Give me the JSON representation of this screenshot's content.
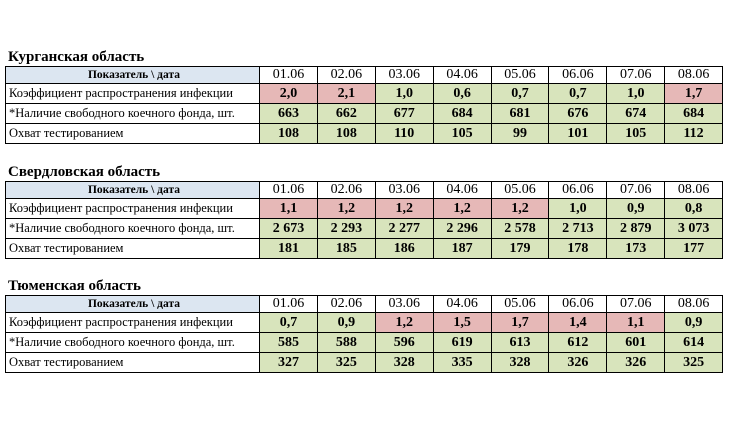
{
  "sections": [
    {
      "title": "Курганская область",
      "header": "Показатель \\ дата",
      "dates": [
        "01.06",
        "02.06",
        "03.06",
        "04.06",
        "05.06",
        "06.06",
        "07.06",
        "08.06"
      ],
      "rows": [
        {
          "label": "Коэффициент распространения инфекции",
          "values": [
            "2,0",
            "2,1",
            "1,0",
            "0,6",
            "0,7",
            "0,7",
            "1,0",
            "1,7"
          ],
          "fills": [
            "#e6b8b7",
            "#e6b8b7",
            "#d8e4bc",
            "#d8e4bc",
            "#d8e4bc",
            "#d8e4bc",
            "#d8e4bc",
            "#e6b8b7"
          ]
        },
        {
          "label": "*Наличие свободного коечного фонда, шт.",
          "values": [
            "663",
            "662",
            "677",
            "684",
            "681",
            "676",
            "674",
            "684"
          ],
          "fills": [
            "#d8e4bc",
            "#d8e4bc",
            "#d8e4bc",
            "#d8e4bc",
            "#d8e4bc",
            "#d8e4bc",
            "#d8e4bc",
            "#d8e4bc"
          ]
        },
        {
          "label": "Охват тестированием",
          "values": [
            "108",
            "108",
            "110",
            "105",
            "99",
            "101",
            "105",
            "112"
          ],
          "fills": [
            "#d8e4bc",
            "#d8e4bc",
            "#d8e4bc",
            "#d8e4bc",
            "#d8e4bc",
            "#d8e4bc",
            "#d8e4bc",
            "#d8e4bc"
          ]
        }
      ]
    },
    {
      "title": "Свердловская область",
      "header": "Показатель \\ дата",
      "dates": [
        "01.06",
        "02.06",
        "03.06",
        "04.06",
        "05.06",
        "06.06",
        "07.06",
        "08.06"
      ],
      "rows": [
        {
          "label": "Коэффициент распространения инфекции",
          "values": [
            "1,1",
            "1,2",
            "1,2",
            "1,2",
            "1,2",
            "1,0",
            "0,9",
            "0,8"
          ],
          "fills": [
            "#e6b8b7",
            "#e6b8b7",
            "#e6b8b7",
            "#e6b8b7",
            "#e6b8b7",
            "#d8e4bc",
            "#d8e4bc",
            "#d8e4bc"
          ]
        },
        {
          "label": "*Наличие свободного коечного фонда, шт.",
          "values": [
            "2 673",
            "2 293",
            "2 277",
            "2 296",
            "2 578",
            "2 713",
            "2 879",
            "3 073"
          ],
          "fills": [
            "#d8e4bc",
            "#d8e4bc",
            "#d8e4bc",
            "#d8e4bc",
            "#d8e4bc",
            "#d8e4bc",
            "#d8e4bc",
            "#d8e4bc"
          ]
        },
        {
          "label": "Охват тестированием",
          "values": [
            "181",
            "185",
            "186",
            "187",
            "179",
            "178",
            "173",
            "177"
          ],
          "fills": [
            "#d8e4bc",
            "#d8e4bc",
            "#d8e4bc",
            "#d8e4bc",
            "#d8e4bc",
            "#d8e4bc",
            "#d8e4bc",
            "#d8e4bc"
          ]
        }
      ]
    },
    {
      "title": "Тюменская область",
      "header": "Показатель \\ дата",
      "dates": [
        "01.06",
        "02.06",
        "03.06",
        "04.06",
        "05.06",
        "06.06",
        "07.06",
        "08.06"
      ],
      "rows": [
        {
          "label": "Коэффициент распространения инфекции",
          "values": [
            "0,7",
            "0,9",
            "1,2",
            "1,5",
            "1,7",
            "1,4",
            "1,1",
            "0,9"
          ],
          "fills": [
            "#d8e4bc",
            "#d8e4bc",
            "#e6b8b7",
            "#e6b8b7",
            "#e6b8b7",
            "#e6b8b7",
            "#e6b8b7",
            "#d8e4bc"
          ]
        },
        {
          "label": "*Наличие свободного коечного фонда, шт.",
          "values": [
            "585",
            "588",
            "596",
            "619",
            "613",
            "612",
            "601",
            "614"
          ],
          "fills": [
            "#d8e4bc",
            "#d8e4bc",
            "#d8e4bc",
            "#d8e4bc",
            "#d8e4bc",
            "#d8e4bc",
            "#d8e4bc",
            "#d8e4bc"
          ]
        },
        {
          "label": "Охват тестированием",
          "values": [
            "327",
            "325",
            "328",
            "335",
            "328",
            "326",
            "326",
            "325"
          ],
          "fills": [
            "#d8e4bc",
            "#d8e4bc",
            "#d8e4bc",
            "#d8e4bc",
            "#d8e4bc",
            "#d8e4bc",
            "#d8e4bc",
            "#d8e4bc"
          ]
        }
      ]
    }
  ]
}
